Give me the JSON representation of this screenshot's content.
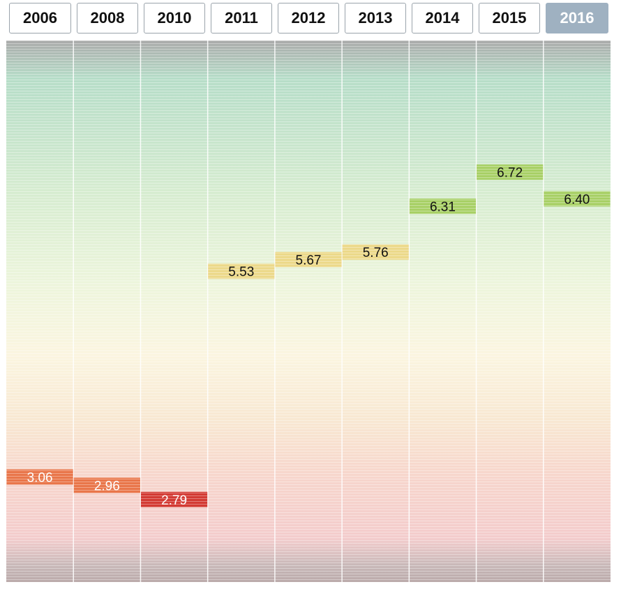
{
  "tabs": {
    "years": [
      "2006",
      "2008",
      "2010",
      "2011",
      "2012",
      "2013",
      "2014",
      "2015",
      "2016"
    ],
    "active": "2016"
  },
  "chart_data": {
    "type": "heatmap",
    "title": "",
    "xlabel": "",
    "ylabel": "",
    "categories": [
      "2006",
      "2008",
      "2010",
      "2011",
      "2012",
      "2013",
      "2014",
      "2015",
      "2016"
    ],
    "values": [
      3.06,
      2.96,
      2.79,
      5.53,
      5.67,
      5.76,
      6.31,
      6.72,
      6.4
    ],
    "labels": [
      "3.06",
      "2.96",
      "2.79",
      "5.53",
      "5.67",
      "5.76",
      "6.31",
      "6.72",
      "6.40"
    ],
    "ylim": [
      1.8,
      8.3
    ],
    "colors": {
      "low": "#d33a33",
      "lowmid": "#e9764a",
      "mid": "#ecd98a",
      "midhigh": "#a8d066",
      "high": "#7fc9a8"
    }
  }
}
